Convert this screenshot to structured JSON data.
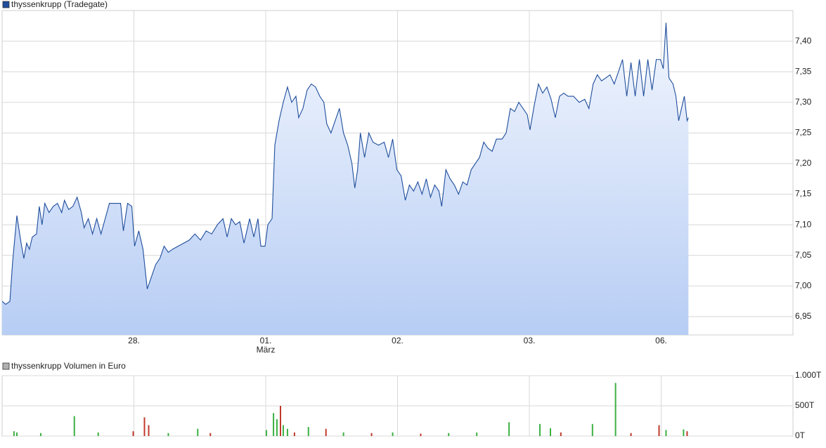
{
  "chart_data": [
    {
      "type": "line",
      "series": [
        {
          "name": "thyssenkrupp (Tradegate)",
          "color": "#1f4e9c",
          "values": [
            6.975,
            6.97,
            6.975,
            7.04,
            7.115,
            7.07,
            7.045,
            7.07,
            7.06,
            7.08,
            7.085,
            7.13,
            7.1,
            7.135,
            7.12,
            7.13,
            7.135,
            7.12,
            7.14,
            7.125,
            7.13,
            7.145,
            7.12,
            7.095,
            7.11,
            7.085,
            7.11,
            7.085,
            7.11,
            7.135,
            7.135,
            7.135,
            7.09,
            7.135,
            7.13,
            7.065,
            7.09,
            7.06,
            6.995,
            7.015,
            7.035,
            7.045,
            7.065,
            7.055,
            7.06,
            7.065,
            7.07,
            7.075,
            7.085,
            7.075,
            7.09,
            7.085,
            7.1,
            7.11,
            7.08,
            7.11,
            7.1,
            7.105,
            7.07,
            7.11,
            7.08,
            7.11,
            7.065,
            7.065,
            7.1,
            7.11,
            7.23,
            7.27,
            7.3,
            7.325,
            7.3,
            7.31,
            7.275,
            7.29,
            7.32,
            7.33,
            7.325,
            7.31,
            7.3,
            7.265,
            7.25,
            7.27,
            7.29,
            7.25,
            7.23,
            7.2,
            7.16,
            7.19,
            7.25,
            7.21,
            7.25,
            7.235,
            7.23,
            7.235,
            7.21,
            7.24,
            7.19,
            7.18,
            7.14,
            7.165,
            7.155,
            7.17,
            7.15,
            7.175,
            7.145,
            7.165,
            7.155,
            7.13,
            7.19,
            7.175,
            7.165,
            7.15,
            7.17,
            7.165,
            7.19,
            7.2,
            7.21,
            7.235,
            7.225,
            7.22,
            7.24,
            7.24,
            7.25,
            7.29,
            7.285,
            7.3,
            7.29,
            7.28,
            7.255,
            7.295,
            7.33,
            7.315,
            7.325,
            7.305,
            7.275,
            7.31,
            7.315,
            7.31,
            7.31,
            7.3,
            7.305,
            7.29,
            7.33,
            7.345,
            7.335,
            7.34,
            7.345,
            7.33,
            7.35,
            7.37,
            7.31,
            7.365,
            7.31,
            7.37,
            7.31,
            7.37,
            7.32,
            7.37,
            7.37,
            7.355,
            7.43,
            7.34,
            7.33,
            7.31,
            7.27,
            7.29,
            7.31,
            7.27,
            7.275
          ]
        }
      ],
      "x": [
        0,
        0.027,
        0.059,
        0.08,
        0.112,
        0.144,
        0.165,
        0.186,
        0.207,
        0.229,
        0.261,
        0.282,
        0.303,
        0.324,
        0.356,
        0.388,
        0.42,
        0.452,
        0.473,
        0.505,
        0.537,
        0.569,
        0.601,
        0.622,
        0.654,
        0.686,
        0.718,
        0.75,
        0.782,
        0.814,
        0.856,
        0.899,
        0.92,
        0.952,
        0.984,
        1.005,
        1.037,
        1.069,
        1.101,
        1.133,
        1.165,
        1.197,
        1.229,
        1.261,
        1.293,
        1.335,
        1.378,
        1.42,
        1.463,
        1.505,
        1.548,
        1.59,
        1.633,
        1.676,
        1.707,
        1.739,
        1.771,
        1.803,
        1.835,
        1.878,
        1.91,
        1.941,
        1.963,
        1.995,
        2.016,
        2.048,
        2.069,
        2.101,
        2.133,
        2.165,
        2.197,
        2.229,
        2.25,
        2.282,
        2.314,
        2.346,
        2.378,
        2.41,
        2.441,
        2.463,
        2.495,
        2.527,
        2.559,
        2.59,
        2.622,
        2.654,
        2.676,
        2.697,
        2.718,
        2.75,
        2.782,
        2.814,
        2.856,
        2.899,
        2.931,
        2.963,
        2.995,
        3.027,
        3.059,
        3.09,
        3.122,
        3.154,
        3.186,
        3.218,
        3.25,
        3.282,
        3.314,
        3.335,
        3.367,
        3.399,
        3.431,
        3.463,
        3.495,
        3.527,
        3.559,
        3.59,
        3.622,
        3.654,
        3.686,
        3.718,
        3.75,
        3.793,
        3.824,
        3.856,
        3.888,
        3.92,
        3.952,
        3.984,
        4.005,
        4.037,
        4.069,
        4.101,
        4.133,
        4.165,
        4.197,
        4.229,
        4.261,
        4.293,
        4.335,
        4.378,
        4.42,
        4.452,
        4.484,
        4.516,
        4.548,
        4.58,
        4.612,
        4.644,
        4.676,
        4.707,
        4.739,
        4.771,
        4.803,
        4.835,
        4.867,
        4.899,
        4.931,
        4.963,
        4.995,
        5.016,
        5.037,
        5.059,
        5.09,
        5.112,
        5.133,
        5.154,
        5.176,
        5.197,
        5.207
      ],
      "xlim": [
        0,
        6
      ],
      "xticks": [
        {
          "value": 1,
          "label": "28."
        },
        {
          "value": 2,
          "label": "01."
        },
        {
          "value": 3,
          "label": "02."
        },
        {
          "value": 4,
          "label": "03."
        },
        {
          "value": 5,
          "label": "06."
        }
      ],
      "month_label": "März",
      "ylim": [
        6.92,
        7.45
      ],
      "yticks": [
        {
          "value": 6.95,
          "label": "6,95"
        },
        {
          "value": 7.0,
          "label": "7,00"
        },
        {
          "value": 7.05,
          "label": "7,05"
        },
        {
          "value": 7.1,
          "label": "7,10"
        },
        {
          "value": 7.15,
          "label": "7,15"
        },
        {
          "value": 7.2,
          "label": "7,20"
        },
        {
          "value": 7.25,
          "label": "7,25"
        },
        {
          "value": 7.3,
          "label": "7,30"
        },
        {
          "value": 7.35,
          "label": "7,35"
        },
        {
          "value": 7.4,
          "label": "7,40"
        }
      ],
      "grid": true
    },
    {
      "type": "bar",
      "series": [
        {
          "name": "thyssenkrupp Volumen in Euro",
          "color": "#b0b0b0",
          "values": [
            80,
            60,
            50,
            330,
            60,
            80,
            310,
            180,
            50,
            120,
            50,
            100,
            380,
            280,
            500,
            180,
            120,
            60,
            150,
            120,
            60,
            50,
            60,
            40,
            50,
            60,
            230,
            200,
            130,
            60,
            200,
            880,
            50,
            180,
            100,
            110,
            80
          ],
          "colors": [
            "#3cb043",
            "#3cb043",
            "#3cb043",
            "#3cb043",
            "#3cb043",
            "#c0392b",
            "#c0392b",
            "#c0392b",
            "#3cb043",
            "#3cb043",
            "#c0392b",
            "#3cb043",
            "#3cb043",
            "#3cb043",
            "#c0392b",
            "#3cb043",
            "#3cb043",
            "#c0392b",
            "#3cb043",
            "#c0392b",
            "#3cb043",
            "#c0392b",
            "#3cb043",
            "#c0392b",
            "#3cb043",
            "#3cb043",
            "#3cb043",
            "#3cb043",
            "#3cb043",
            "#c0392b",
            "#3cb043",
            "#3cb043",
            "#c0392b",
            "#c0392b",
            "#3cb043",
            "#3cb043",
            "#c0392b"
          ]
        }
      ],
      "x": [
        0.09,
        0.112,
        0.293,
        0.548,
        0.729,
        0.995,
        1.08,
        1.112,
        1.261,
        1.484,
        1.58,
        2.005,
        2.059,
        2.085,
        2.112,
        2.133,
        2.165,
        2.218,
        2.324,
        2.457,
        2.59,
        2.803,
        2.963,
        3.176,
        3.388,
        3.601,
        3.846,
        4.08,
        4.16,
        4.239,
        4.479,
        4.654,
        4.771,
        4.984,
        5.037,
        5.17,
        5.197
      ],
      "xlim": [
        0,
        6
      ],
      "xticks": [
        1,
        2,
        3,
        4,
        5
      ],
      "ylim": [
        0,
        1000
      ],
      "yticks": [
        {
          "value": 0,
          "label": "0T"
        },
        {
          "value": 500,
          "label": "500T"
        },
        {
          "value": 1000,
          "label": "1.000T"
        }
      ],
      "grid": true
    }
  ]
}
